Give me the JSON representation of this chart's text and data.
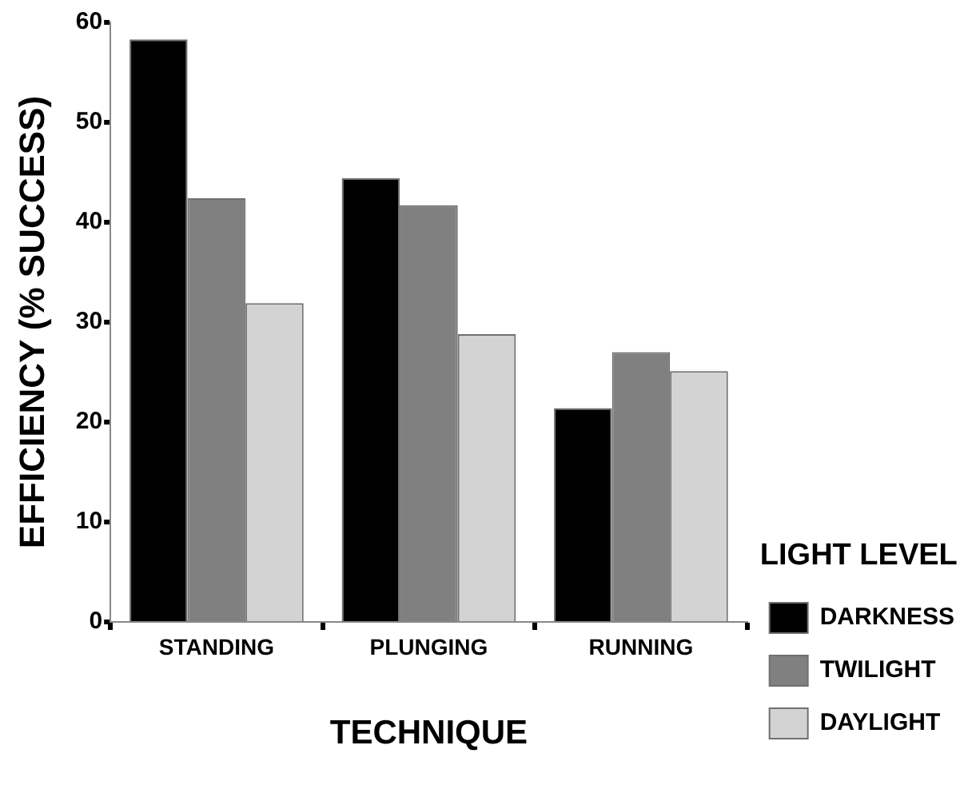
{
  "chart_data": {
    "type": "bar",
    "xlabel": "TECHNIQUE",
    "ylabel": "EFFICIENCY (% SUCCESS)",
    "legend_title": "LIGHT LEVEL",
    "categories": [
      "STANDING",
      "PLUNGING",
      "RUNNING"
    ],
    "series": [
      {
        "name": "DARKNESS",
        "color": "#000000",
        "values": [
          58.3,
          44.4,
          21.4
        ]
      },
      {
        "name": "TWILIGHT",
        "color": "#808080",
        "values": [
          42.4,
          41.7,
          27.0
        ]
      },
      {
        "name": "DAYLIGHT",
        "color": "#d3d3d3",
        "values": [
          31.9,
          28.8,
          25.1
        ]
      }
    ],
    "ylim": [
      0,
      60
    ],
    "yticks": [
      0,
      10,
      20,
      30,
      40,
      50,
      60
    ],
    "grid": false,
    "legend": "bottom right"
  }
}
